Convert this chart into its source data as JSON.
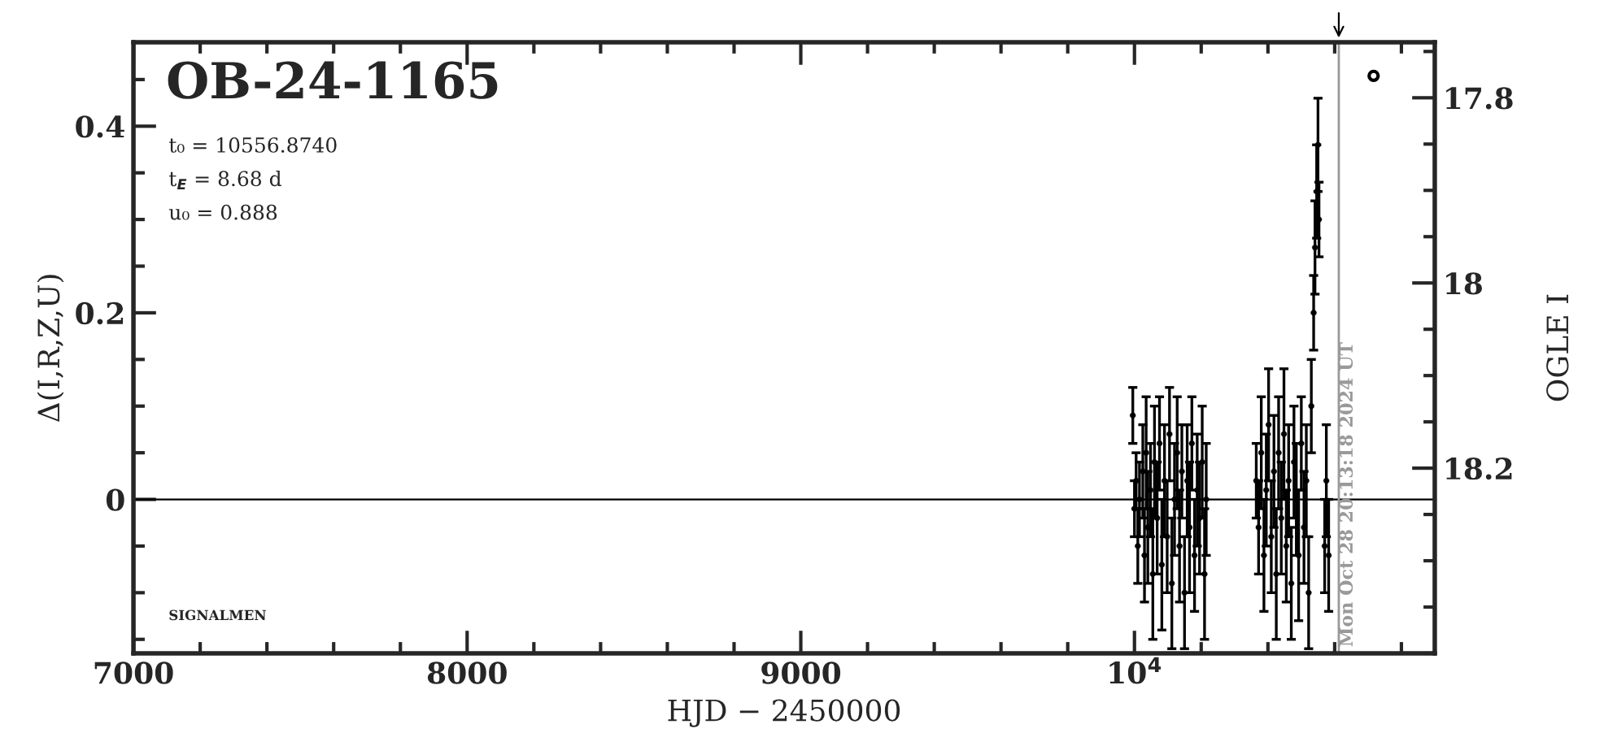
{
  "chart_data": {
    "type": "scatter",
    "title": "OB-24-1165",
    "xlabel": "HJD − 2450000",
    "ylabel": "Δ(I,R,Z,U)",
    "y2label": "OGLE I",
    "annotations": [
      "t₀ = 10556.8740",
      "t$_{E}$ = 8.68 d",
      "u₀ = 0.888",
      "SIGNALMEN",
      "Mon Oct 28 20:13:18 2024 UT"
    ],
    "x": [
      9995,
      10000,
      10005,
      10010,
      10015,
      10025,
      10030,
      10035,
      10040,
      10048,
      10055,
      10060,
      10068,
      10075,
      10082,
      10090,
      10098,
      10105,
      10112,
      10120,
      10128,
      10135,
      10142,
      10150,
      10158,
      10165,
      10172,
      10180,
      10188,
      10195,
      10203,
      10210,
      10215,
      10365,
      10372,
      10380,
      10388,
      10395,
      10402,
      10410,
      10418,
      10425,
      10432,
      10440,
      10448,
      10455,
      10462,
      10470,
      10478,
      10485,
      10492,
      10500,
      10508,
      10515,
      10522,
      10530,
      10537,
      10541,
      10546,
      10550,
      10553,
      10570,
      10575,
      10582
    ],
    "series": [
      {
        "color": "#000000",
        "values": [
          0.09,
          -0.01,
          0.02,
          -0.05,
          0.0,
          0.03,
          -0.06,
          0.05,
          -0.03,
          0.01,
          -0.08,
          0.04,
          -0.02,
          0.06,
          -0.07,
          0.02,
          -0.04,
          0.07,
          -0.09,
          0.0,
          0.05,
          -0.05,
          0.03,
          -0.1,
          0.02,
          -0.03,
          0.06,
          -0.06,
          0.01,
          -0.02,
          0.04,
          -0.08,
          0.0,
          0.02,
          -0.03,
          0.05,
          -0.06,
          0.01,
          0.08,
          -0.04,
          0.03,
          -0.08,
          0.05,
          -0.02,
          0.07,
          -0.05,
          0.02,
          -0.09,
          0.04,
          0.0,
          -0.06,
          0.06,
          -0.03,
          0.02,
          -0.1,
          0.1,
          0.2,
          0.27,
          0.33,
          0.38,
          0.3,
          -0.05,
          0.02,
          -0.06
        ],
        "errors": [
          0.03,
          0.03,
          0.03,
          0.04,
          0.04,
          0.05,
          0.05,
          0.06,
          0.06,
          0.05,
          0.07,
          0.06,
          0.06,
          0.05,
          0.07,
          0.06,
          0.06,
          0.05,
          0.07,
          0.06,
          0.06,
          0.06,
          0.05,
          0.06,
          0.06,
          0.07,
          0.05,
          0.06,
          0.06,
          0.06,
          0.06,
          0.07,
          0.06,
          0.04,
          0.05,
          0.06,
          0.06,
          0.06,
          0.06,
          0.06,
          0.06,
          0.07,
          0.06,
          0.06,
          0.07,
          0.06,
          0.06,
          0.06,
          0.06,
          0.06,
          0.07,
          0.05,
          0.06,
          0.06,
          0.06,
          0.05,
          0.04,
          0.05,
          0.05,
          0.05,
          0.04,
          0.05,
          0.06,
          0.06
        ]
      }
    ],
    "marker": "circle",
    "xlim": [
      7000,
      10900
    ],
    "xticks": [
      7000,
      8000,
      9000,
      {
        "value": 10000,
        "label": "10$^{4}$"
      }
    ],
    "ylim": [
      -0.165,
      0.49
    ],
    "yticks": [
      0,
      0.2,
      0.4
    ],
    "y2lim": [
      18.4,
      17.74
    ],
    "y2ticks": [
      17.8,
      18,
      18.2
    ],
    "ref_lines": [
      {
        "axis": "y",
        "value": 0,
        "color": "#000000"
      },
      {
        "axis": "x",
        "value": 10612.34,
        "color": "#999999"
      }
    ],
    "grid": false
  }
}
